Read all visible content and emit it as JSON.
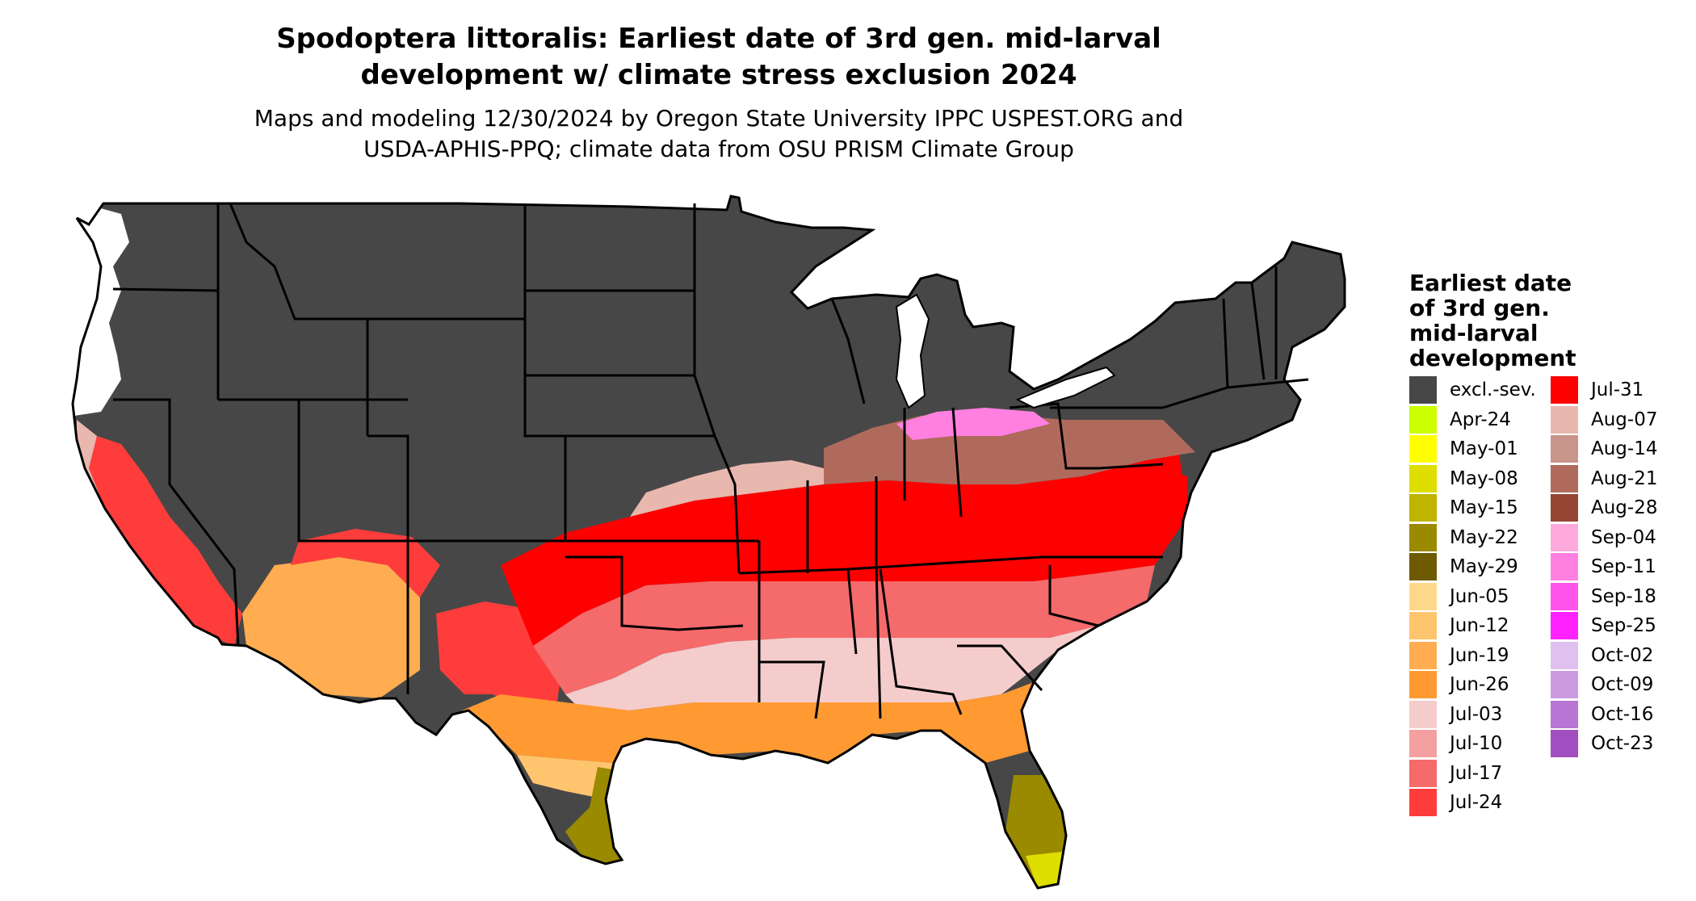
{
  "title_line1": "Spodoptera littoralis: Earliest date of 3rd gen. mid-larval",
  "title_line2": "development w/ climate stress exclusion 2024",
  "subtitle_line1": "Maps and modeling 12/30/2024 by Oregon State University IPPC USPEST.ORG and",
  "subtitle_line2": "USDA-APHIS-PPQ; climate data from OSU PRISM Climate Group",
  "legend": {
    "title_lines": [
      "Earliest date",
      "of 3rd gen.",
      "mid-larval",
      "development"
    ],
    "items": [
      {
        "label": "excl.-sev.",
        "color": "#474747"
      },
      {
        "label": "Apr-24",
        "color": "#ccff00"
      },
      {
        "label": "May-01",
        "color": "#ffff00"
      },
      {
        "label": "May-08",
        "color": "#dede00"
      },
      {
        "label": "May-15",
        "color": "#bfb400"
      },
      {
        "label": "May-22",
        "color": "#9a8a00"
      },
      {
        "label": "May-29",
        "color": "#6e5a00"
      },
      {
        "label": "Jun-05",
        "color": "#ffd98a"
      },
      {
        "label": "Jun-12",
        "color": "#ffc46e"
      },
      {
        "label": "Jun-19",
        "color": "#ffad50"
      },
      {
        "label": "Jun-26",
        "color": "#ff9a33"
      },
      {
        "label": "Jul-03",
        "color": "#f5cccc"
      },
      {
        "label": "Jul-10",
        "color": "#f5a0a0"
      },
      {
        "label": "Jul-17",
        "color": "#f56a6a"
      },
      {
        "label": "Jul-24",
        "color": "#ff3c3c"
      },
      {
        "label": "Jul-31",
        "color": "#ff0000"
      },
      {
        "label": "Aug-07",
        "color": "#e8b8ae"
      },
      {
        "label": "Aug-14",
        "color": "#c9948a"
      },
      {
        "label": "Aug-21",
        "color": "#b06a5c"
      },
      {
        "label": "Aug-28",
        "color": "#964535"
      },
      {
        "label": "Sep-04",
        "color": "#ffaadd"
      },
      {
        "label": "Sep-11",
        "color": "#ff80e0"
      },
      {
        "label": "Sep-18",
        "color": "#ff55ee"
      },
      {
        "label": "Sep-25",
        "color": "#ff22ff"
      },
      {
        "label": "Oct-02",
        "color": "#e0c0ee"
      },
      {
        "label": "Oct-09",
        "color": "#cc9ae0"
      },
      {
        "label": "Oct-16",
        "color": "#b875d4"
      },
      {
        "label": "Oct-23",
        "color": "#a04ec0"
      }
    ]
  }
}
